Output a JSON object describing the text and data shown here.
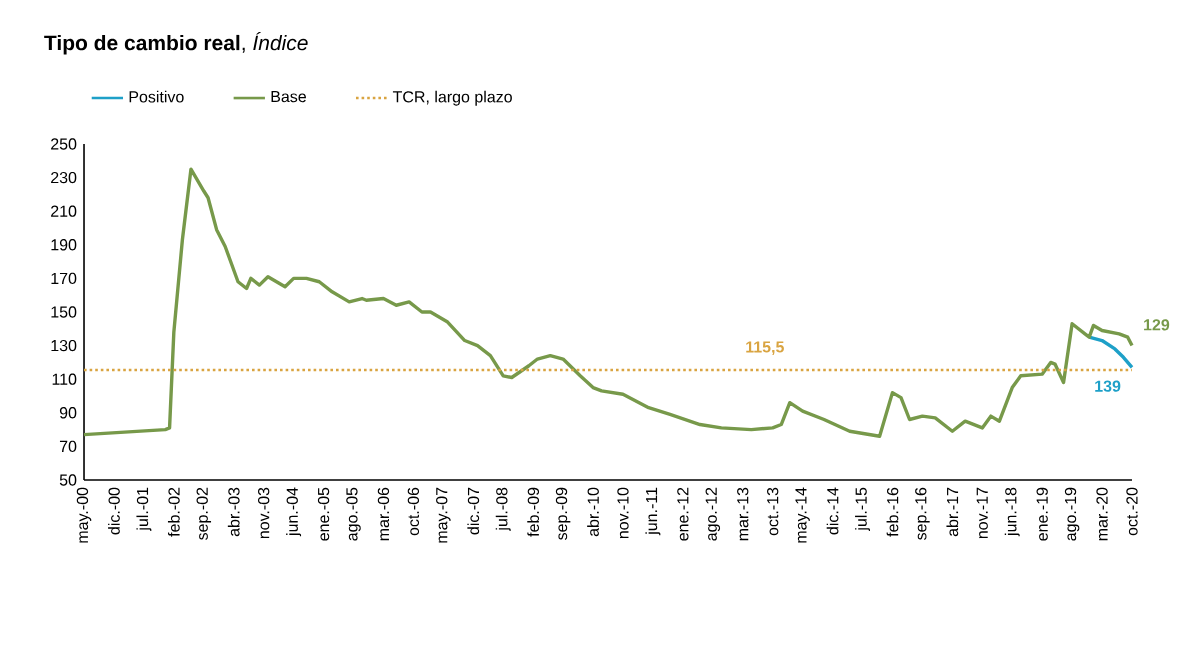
{
  "chart_data": {
    "type": "line",
    "title": "**Tipo de cambio real**, *Índice*",
    "legend": "top left",
    "xlim": [
      "2000-05",
      "2020-10"
    ],
    "ylim": [
      50,
      250
    ],
    "yticks": [
      50,
      70,
      90,
      110,
      130,
      150,
      170,
      190,
      210,
      230,
      250
    ],
    "xticks": [
      {
        "value": "2000-05",
        "label": "may.-00"
      },
      {
        "value": "2000-12",
        "label": "dic.-00"
      },
      {
        "value": "2001-07",
        "label": "jul.-01"
      },
      {
        "value": "2002-02",
        "label": "feb.-02"
      },
      {
        "value": "2002-09",
        "label": "sep.-02"
      },
      {
        "value": "2003-04",
        "label": "abr.-03"
      },
      {
        "value": "2003-11",
        "label": "nov.-03"
      },
      {
        "value": "2004-06",
        "label": "jun.-04"
      },
      {
        "value": "2005-01",
        "label": "ene.-05"
      },
      {
        "value": "2005-08",
        "label": "ago.-05"
      },
      {
        "value": "2006-03",
        "label": "mar.-06"
      },
      {
        "value": "2006-10",
        "label": "oct.-06"
      },
      {
        "value": "2007-05",
        "label": "may.-07"
      },
      {
        "value": "2007-12",
        "label": "dic.-07"
      },
      {
        "value": "2008-07",
        "label": "jul.-08"
      },
      {
        "value": "2009-02",
        "label": "feb.-09"
      },
      {
        "value": "2009-09",
        "label": "sep.-09"
      },
      {
        "value": "2010-04",
        "label": "abr.-10"
      },
      {
        "value": "2010-11",
        "label": "nov.-10"
      },
      {
        "value": "2011-06",
        "label": "jun.-11"
      },
      {
        "value": "2012-01",
        "label": "ene.-12"
      },
      {
        "value": "2012-08",
        "label": "ago.-12"
      },
      {
        "value": "2013-03",
        "label": "mar.-13"
      },
      {
        "value": "2013-10",
        "label": "oct.-13"
      },
      {
        "value": "2014-05",
        "label": "may.-14"
      },
      {
        "value": "2014-12",
        "label": "dic.-14"
      },
      {
        "value": "2015-07",
        "label": "jul.-15"
      },
      {
        "value": "2016-02",
        "label": "feb.-16"
      },
      {
        "value": "2016-09",
        "label": "sep.-16"
      },
      {
        "value": "2017-04",
        "label": "abr.-17"
      },
      {
        "value": "2017-11",
        "label": "nov.-17"
      },
      {
        "value": "2018-06",
        "label": "jun.-18"
      },
      {
        "value": "2019-01",
        "label": "ene.-19"
      },
      {
        "value": "2019-08",
        "label": "ago.-19"
      },
      {
        "value": "2020-03",
        "label": "mar.-20"
      },
      {
        "value": "2020-10",
        "label": "oct.-20"
      }
    ],
    "series": [
      {
        "name": "Positivo",
        "color": "#1ea0c8",
        "x": [
          "2019-12",
          "2020-03",
          "2020-06",
          "2020-08",
          "2020-10"
        ],
        "values": [
          135,
          133,
          128,
          123,
          117
        ]
      },
      {
        "name": "Base",
        "color": "#77994a",
        "x": [
          "2000-05",
          "2001-12",
          "2002-01",
          "2002-02",
          "2002-04",
          "2002-06",
          "2002-09",
          "2002-10",
          "2002-12",
          "2003-02",
          "2003-03",
          "2003-05",
          "2003-07",
          "2003-08",
          "2003-10",
          "2003-12",
          "2004-04",
          "2004-06",
          "2004-09",
          "2004-12",
          "2005-03",
          "2005-07",
          "2005-10",
          "2005-11",
          "2006-03",
          "2006-06",
          "2006-09",
          "2006-12",
          "2007-02",
          "2007-06",
          "2007-10",
          "2008-01",
          "2008-04",
          "2008-07",
          "2008-09",
          "2009-01",
          "2009-03",
          "2009-06",
          "2009-09",
          "2010-01",
          "2010-04",
          "2010-06",
          "2010-11",
          "2011-05",
          "2011-10",
          "2012-05",
          "2012-10",
          "2013-05",
          "2013-10",
          "2013-12",
          "2014-02",
          "2014-05",
          "2014-10",
          "2015-04",
          "2015-11",
          "2016-02",
          "2016-04",
          "2016-06",
          "2016-09",
          "2016-12",
          "2017-04",
          "2017-07",
          "2017-11",
          "2018-01",
          "2018-03",
          "2018-06",
          "2018-08",
          "2019-01",
          "2019-03",
          "2019-04",
          "2019-06",
          "2019-08",
          "2019-11",
          "2019-12",
          "2020-01",
          "2020-03",
          "2020-07",
          "2020-09",
          "2020-10"
        ],
        "values": [
          77,
          80,
          81,
          138,
          193,
          235,
          222,
          218,
          199,
          189,
          182,
          168,
          164,
          170,
          166,
          171,
          165,
          170,
          170,
          168,
          162,
          156,
          158,
          157,
          158,
          154,
          156,
          150,
          150,
          144,
          133,
          130,
          124,
          112,
          111,
          118,
          122,
          124,
          122,
          112,
          105,
          103,
          101,
          93,
          89,
          83,
          81,
          80,
          81,
          83,
          96,
          91,
          86,
          79,
          76,
          102,
          99,
          86,
          88,
          87,
          79,
          85,
          81,
          88,
          85,
          105,
          112,
          113,
          120,
          119,
          108,
          143,
          137,
          135,
          142,
          139,
          137,
          135,
          130
        ]
      },
      {
        "name": "TCR, largo plazo",
        "color": "#d9a441",
        "line_style": "dotted",
        "x": [
          "2000-05",
          "2020-10"
        ],
        "values": [
          115.5,
          115.5
        ]
      }
    ],
    "annotations": [
      {
        "text": "115,5",
        "x": "2013-01",
        "y": 115.5
      },
      {
        "text": "129",
        "x": "2020-10",
        "y": 130
      },
      {
        "text": "139",
        "x": "2020-10",
        "y": 117
      }
    ]
  }
}
